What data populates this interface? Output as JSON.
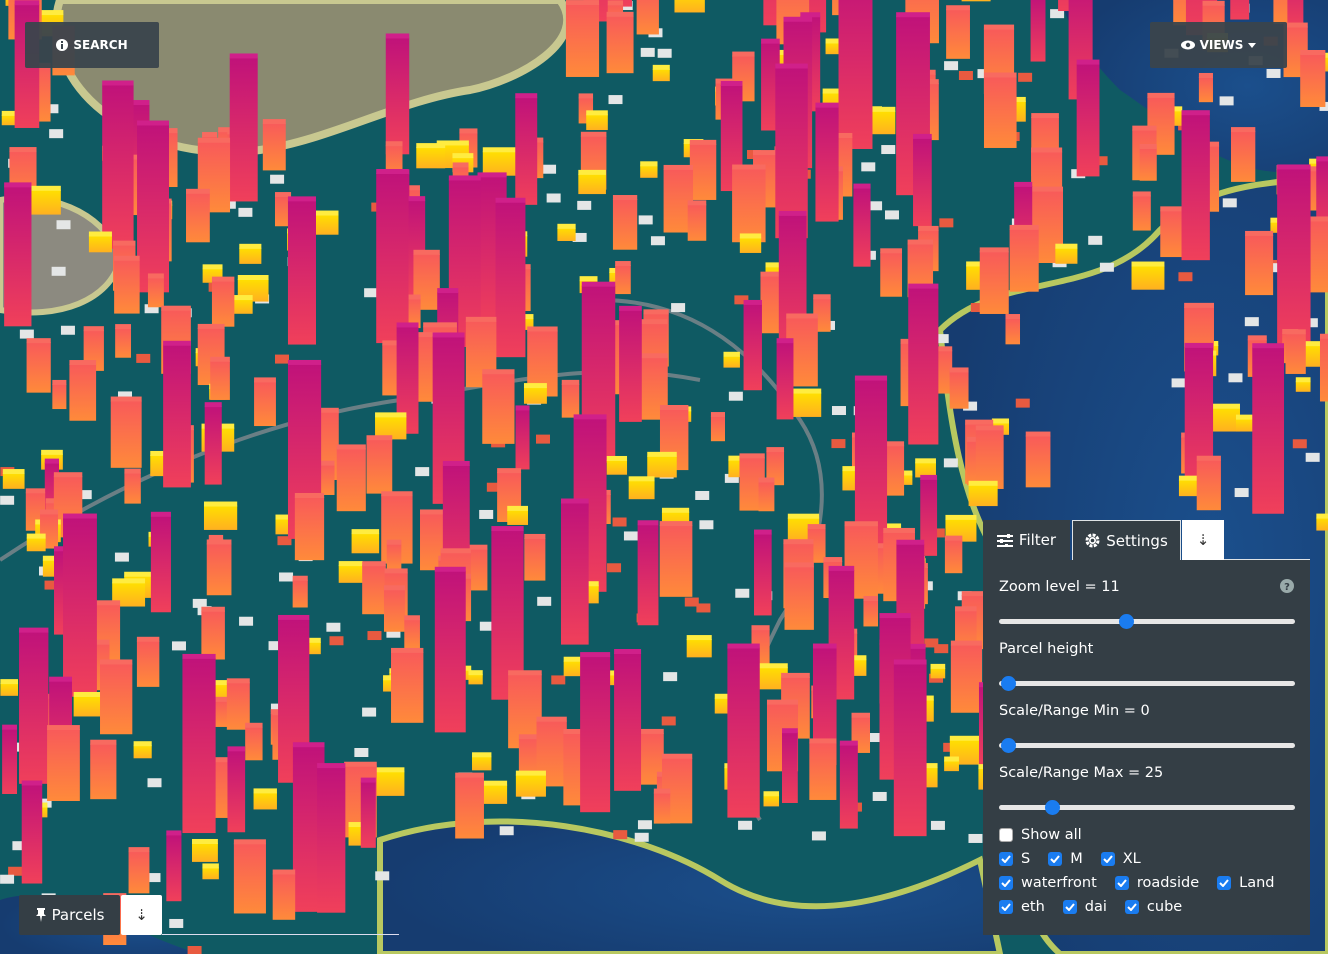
{
  "header": {
    "search": "SEARCH",
    "views": "VIEWS"
  },
  "parcels_panel": {
    "title": "Parcels",
    "toggle": "⇣"
  },
  "settings_panel": {
    "tabs": [
      "Filter",
      "Settings",
      "⇣"
    ],
    "active_tab": 1,
    "sliders": [
      {
        "label": "Zoom level = 11"
      },
      {
        "label": "Parcel height"
      },
      {
        "label": "Scale/Range Min = 0"
      },
      {
        "label": "Scale/Range Max = 25"
      }
    ],
    "checkbox_rows": [
      [
        {
          "label": "Show all",
          "checked": false
        }
      ],
      [
        {
          "label": "S",
          "checked": true
        },
        {
          "label": "M",
          "checked": true
        },
        {
          "label": "XL",
          "checked": true
        }
      ],
      [
        {
          "label": "waterfront",
          "checked": true
        },
        {
          "label": "roadside",
          "checked": true
        },
        {
          "label": "Land",
          "checked": true
        }
      ],
      [
        {
          "label": "eth",
          "checked": true
        },
        {
          "label": "dai",
          "checked": true
        },
        {
          "label": "cube",
          "checked": true
        }
      ]
    ]
  }
}
